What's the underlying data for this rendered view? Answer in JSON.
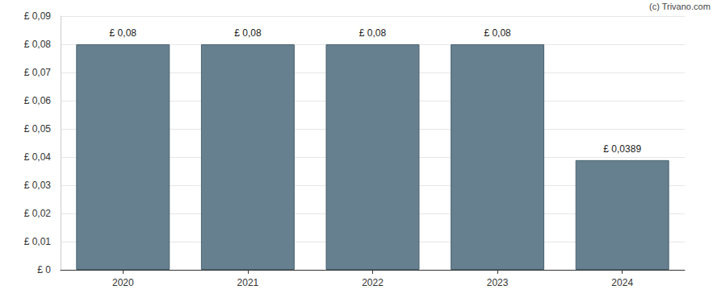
{
  "chart_data": {
    "type": "bar",
    "categories": [
      "2020",
      "2021",
      "2022",
      "2023",
      "2024"
    ],
    "values": [
      0.08,
      0.08,
      0.08,
      0.08,
      0.0389
    ],
    "value_labels": [
      "£ 0,08",
      "£ 0,08",
      "£ 0,08",
      "£ 0,08",
      "£ 0,0389"
    ],
    "data_labels": true,
    "color": "#66808f",
    "ylim": [
      0,
      0.09
    ],
    "yticks": [
      {
        "value": 0,
        "label": "£ 0"
      },
      {
        "value": 0.01,
        "label": "£ 0,01"
      },
      {
        "value": 0.02,
        "label": "£ 0,02"
      },
      {
        "value": 0.03,
        "label": "£ 0,03"
      },
      {
        "value": 0.04,
        "label": "£ 0,04"
      },
      {
        "value": 0.05,
        "label": "£ 0,05"
      },
      {
        "value": 0.06,
        "label": "£ 0,06"
      },
      {
        "value": 0.07,
        "label": "£ 0,07"
      },
      {
        "value": 0.08,
        "label": "£ 0,08"
      },
      {
        "value": 0.09,
        "label": "£ 0,09"
      }
    ],
    "grid": true,
    "annotations": [
      "(c) Trivano.com"
    ]
  }
}
